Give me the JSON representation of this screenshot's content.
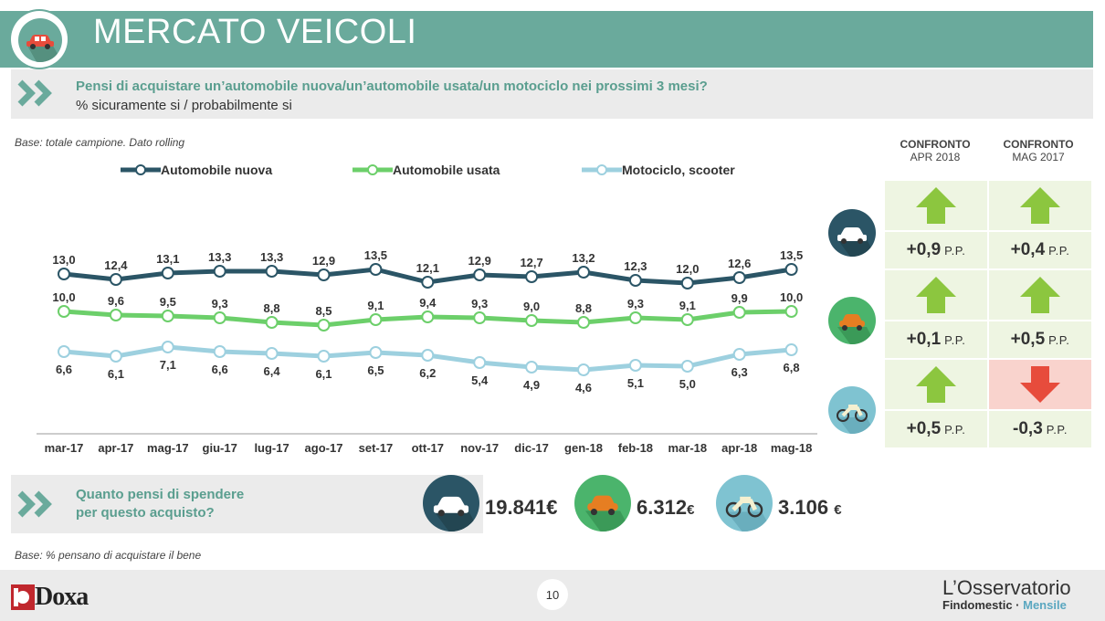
{
  "header": {
    "title": "MERCATO VEICOLI"
  },
  "question": {
    "text": "Pensi di acquistare un’automobile nuova/un’automobile usata/un motociclo nei prossimi 3 mesi?",
    "subtext": "% sicuramente si / probabilmente si"
  },
  "base_note": "Base: totale campione. Dato rolling",
  "chart_data": {
    "type": "line",
    "categories": [
      "mar-17",
      "apr-17",
      "mag-17",
      "giu-17",
      "lug-17",
      "ago-17",
      "set-17",
      "ott-17",
      "nov-17",
      "dic-17",
      "gen-18",
      "feb-18",
      "mar-18",
      "apr-18",
      "mag-18"
    ],
    "series": [
      {
        "name": "Automobile nuova",
        "color": "#2b5566",
        "values": [
          13.0,
          12.4,
          13.1,
          13.3,
          13.3,
          12.9,
          13.5,
          12.1,
          12.9,
          12.7,
          13.2,
          12.3,
          12.0,
          12.6,
          13.5
        ],
        "labels": [
          "13,0",
          "12,4",
          "13,1",
          "13,3",
          "13,3",
          "12,9",
          "13,5",
          "12,1",
          "12,9",
          "12,7",
          "13,2",
          "12,3",
          "12,0",
          "12,6",
          "13,5"
        ]
      },
      {
        "name": "Automobile usata",
        "color": "#6ccf6a",
        "values": [
          10.0,
          9.6,
          9.5,
          9.3,
          8.8,
          8.5,
          9.1,
          9.4,
          9.3,
          9.0,
          8.8,
          9.3,
          9.1,
          9.9,
          10.0
        ],
        "labels": [
          "10,0",
          "9,6",
          "9,5",
          "9,3",
          "8,8",
          "8,5",
          "9,1",
          "9,4",
          "9,3",
          "9,0",
          "8,8",
          "9,3",
          "9,1",
          "9,9",
          "10,0"
        ]
      },
      {
        "name": "Motociclo, scooter",
        "color": "#9dd0df",
        "values": [
          6.6,
          6.1,
          7.1,
          6.6,
          6.4,
          6.1,
          6.5,
          6.2,
          5.4,
          4.9,
          4.6,
          5.1,
          5.0,
          6.3,
          6.8
        ],
        "labels": [
          "6,6",
          "6,1",
          "7,1",
          "6,6",
          "6,4",
          "6,1",
          "6,5",
          "6,2",
          "5,4",
          "4,9",
          "4,6",
          "5,1",
          "5,0",
          "6,3",
          "6,8"
        ]
      }
    ]
  },
  "comparison": {
    "headers": [
      {
        "title": "CONFRONTO",
        "sub": "APR 2018"
      },
      {
        "title": "CONFRONTO",
        "sub": "MAG 2017"
      }
    ],
    "unit": "P.P.",
    "rows": [
      {
        "vehicle": "car-new-icon",
        "apr": "+0,9",
        "apr_dir": "up",
        "mag": "+0,4",
        "mag_dir": "up"
      },
      {
        "vehicle": "car-used-icon",
        "apr": "+0,1",
        "apr_dir": "up",
        "mag": "+0,5",
        "mag_dir": "up"
      },
      {
        "vehicle": "motorcycle-icon",
        "apr": "+0,5",
        "apr_dir": "up",
        "mag": "-0,3",
        "mag_dir": "down"
      }
    ]
  },
  "spend": {
    "question_line1": "Quanto pensi di spendere",
    "question_line2": "per questo acquisto?",
    "items": [
      {
        "icon": "car-new-icon",
        "amount": "19.841",
        "currency": "€"
      },
      {
        "icon": "car-used-icon",
        "amount": "6.312",
        "currency": "€"
      },
      {
        "icon": "motorcycle-icon",
        "amount": "3.106",
        "currency": "€"
      }
    ],
    "base_note": "Base: % pensano di acquistare il bene"
  },
  "footer": {
    "page_number": "10",
    "brand_left": "Doxa",
    "brand_right_line1": "L’Osservatorio",
    "brand_right_line2a": "Findomestic · ",
    "brand_right_line2b": "Mensile"
  }
}
